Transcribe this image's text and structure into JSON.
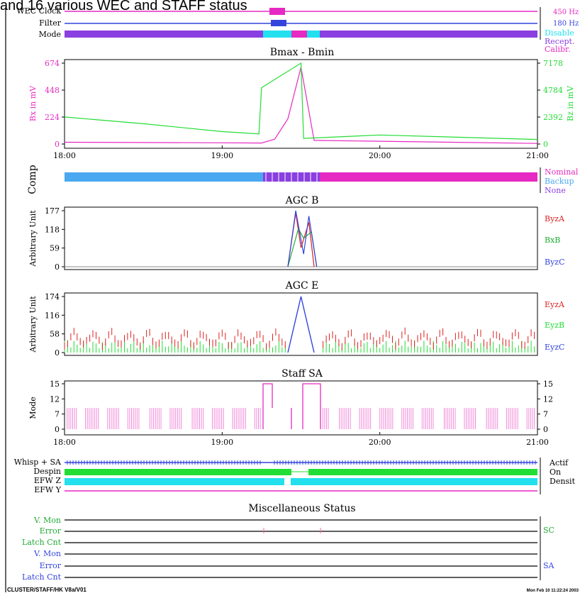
{
  "header_fragment": "and 16 various WEC and STAFF status",
  "colors": {
    "magenta": "#e629c2",
    "pink": "#f08ad8",
    "purple": "#8a3fe0",
    "blue": "#3344dd",
    "cyan": "#22e0ee",
    "green": "#22dd33",
    "red": "#dd2222",
    "sky": "#4aa8f0",
    "black": "#000000"
  },
  "status_top": {
    "rows": [
      "WEC Clock",
      "Filter",
      "Mode"
    ],
    "right": {
      "clock": "450 Hz",
      "filter": "180 Hz",
      "mode_disable": "Disable",
      "mode_recept": "Recept.",
      "mode_calibr": "Calibr."
    }
  },
  "chart_data": [
    {
      "type": "line",
      "title": "Bmax - Bmin",
      "xlabel": "",
      "ylabel": "Bx in mV",
      "ylabel_right": "Bz in mV",
      "x_ticks": [
        "18:00",
        "19:00",
        "20:00",
        "21:00"
      ],
      "xlim": [
        "18:00",
        "21:00"
      ],
      "ylim": [
        0,
        674
      ],
      "ylim_right": [
        0,
        7178
      ],
      "y_ticks": [
        "674",
        "448",
        "224",
        "0"
      ],
      "y_ticks_right": [
        "7178",
        "4784",
        "2392",
        "0"
      ],
      "series": [
        {
          "axis": "left",
          "color": "#e629c2",
          "x": [
            "18:00",
            "19:00",
            "19:15",
            "19:20",
            "19:25",
            "19:30",
            "19:35",
            "21:00"
          ],
          "y": [
            15,
            10,
            8,
            40,
            210,
            640,
            30,
            5
          ]
        },
        {
          "axis": "right",
          "color": "#22dd33",
          "x": [
            "18:00",
            "18:30",
            "19:00",
            "19:14",
            "19:15",
            "19:30",
            "19:31",
            "20:00",
            "21:00"
          ],
          "y": [
            2400,
            1800,
            1100,
            900,
            5000,
            7178,
            500,
            800,
            400
          ]
        }
      ]
    },
    {
      "type": "line",
      "title": "AGC B",
      "ylabel": "Arbitrary Unit",
      "y_ticks": [
        "177",
        "118",
        "59",
        "0"
      ],
      "ylim": [
        0,
        177
      ],
      "legend": [
        "ByzA",
        "BxB",
        "ByzC"
      ],
      "series": [
        {
          "name": "ByzA",
          "color": "#dd2222",
          "x": [
            "19:25",
            "19:28",
            "19:30",
            "19:33",
            "19:35"
          ],
          "y": [
            0,
            170,
            60,
            140,
            0
          ]
        },
        {
          "name": "BxB",
          "color": "#22aa33",
          "x": [
            "19:25",
            "19:29",
            "19:31",
            "19:34",
            "19:36"
          ],
          "y": [
            0,
            120,
            90,
            110,
            0
          ]
        },
        {
          "name": "ByzC",
          "color": "#3344dd",
          "x": [
            "19:25",
            "19:28",
            "19:31",
            "19:33",
            "19:36"
          ],
          "y": [
            0,
            177,
            40,
            160,
            0
          ]
        }
      ]
    },
    {
      "type": "line",
      "title": "AGC E",
      "ylabel": "Arbitrary Unit",
      "y_ticks": [
        "174",
        "116",
        "58",
        "0"
      ],
      "ylim": [
        0,
        174
      ],
      "legend": [
        "EyzA",
        "EyzB",
        "EyzC"
      ],
      "series": [
        {
          "name": "EyzA",
          "color": "#dd2222",
          "x": [
            "18:00",
            "21:00"
          ],
          "y": [
            60,
            60
          ]
        },
        {
          "name": "EyzB",
          "color": "#22dd33",
          "x": [
            "18:00",
            "21:00"
          ],
          "y": [
            25,
            25
          ]
        },
        {
          "name": "EyzC",
          "color": "#3344dd",
          "x": [
            "19:25",
            "19:30",
            "19:35"
          ],
          "y": [
            0,
            174,
            0
          ]
        }
      ]
    },
    {
      "type": "line",
      "title": "Staff SA",
      "ylabel": "Mode",
      "y_ticks": [
        "15",
        "12",
        "7",
        "0"
      ],
      "y_ticks_right": [
        "15",
        "12",
        "7",
        "0"
      ],
      "ylim": [
        0,
        15
      ],
      "x_ticks": [
        "18:00",
        "19:00",
        "20:00",
        "21:00"
      ],
      "series": [
        {
          "color": "#e629c2",
          "x": [
            "18:00",
            "19:15",
            "19:20",
            "19:35",
            "21:00"
          ],
          "y": [
            7,
            7,
            15,
            15,
            7
          ]
        }
      ]
    }
  ],
  "comp": {
    "label": "Comp",
    "legend": [
      "Nominal",
      "Backup",
      "None"
    ]
  },
  "status_bottom": {
    "rows": [
      "Whisp + SA",
      "Despin",
      "EFW Z",
      "EFW Y"
    ],
    "right": [
      "Actif",
      "On",
      "Densit"
    ]
  },
  "misc": {
    "title": "Miscellaneous Status",
    "sc_rows": [
      "V. Mon",
      "Error",
      "Latch Cnt"
    ],
    "sa_rows": [
      "V. Mon",
      "Error",
      "Latch Cnt"
    ],
    "sc_label": "SC",
    "sa_label": "SA"
  },
  "footer": {
    "left": "CLUSTER/STAFF/HK V8a/V01",
    "right": "Mon Feb 10 11:22:24 2003"
  }
}
